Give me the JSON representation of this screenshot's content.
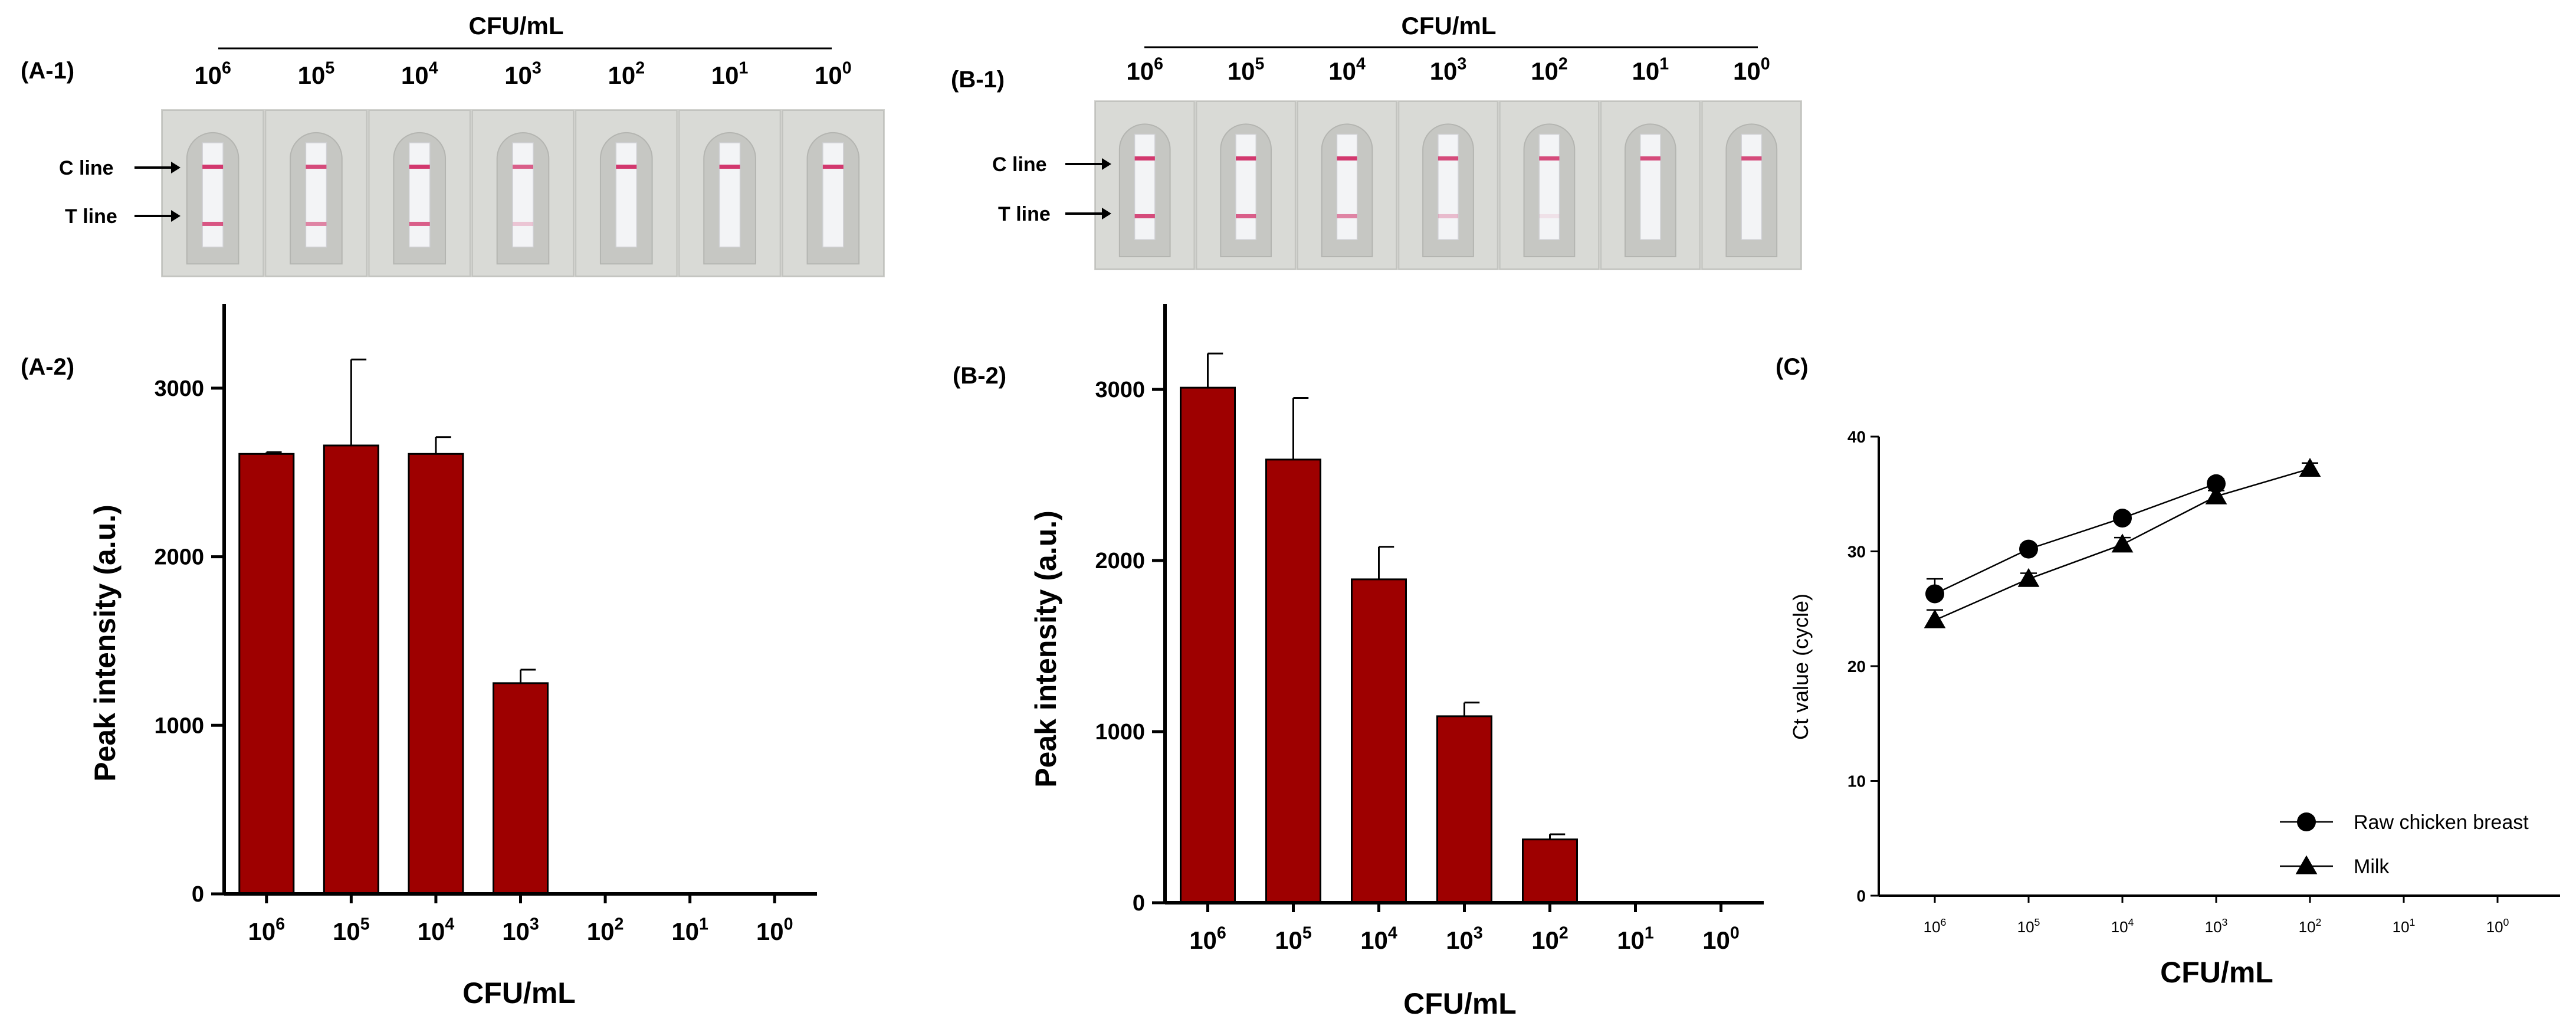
{
  "colors": {
    "bar": "#9e0000",
    "axis": "#000000",
    "strip_bg": "#d2d3cf",
    "band": "#d2386e"
  },
  "unit_label": "CFU/mL",
  "conc": {
    "base": "10",
    "exps": [
      "6",
      "5",
      "4",
      "3",
      "2",
      "1",
      "0"
    ]
  },
  "panels": {
    "a1": {
      "label": "(A-1)",
      "header": "CFU/mL",
      "c_line": "C line",
      "t_line": "T line"
    },
    "b1": {
      "label": "(B-1)",
      "header": "CFU/mL",
      "c_line": "C line",
      "t_line": "T line"
    },
    "a2": {
      "label": "(A-2)"
    },
    "b2": {
      "label": "(B-2)"
    },
    "c": {
      "label": "(C)"
    }
  },
  "strips": {
    "a1": [
      {
        "c_band": 1.0,
        "t_band": 0.85
      },
      {
        "c_band": 0.9,
        "t_band": 0.6
      },
      {
        "c_band": 1.0,
        "t_band": 0.8
      },
      {
        "c_band": 0.8,
        "t_band": 0.25
      },
      {
        "c_band": 1.0,
        "t_band": 0.0
      },
      {
        "c_band": 1.0,
        "t_band": 0.0
      },
      {
        "c_band": 1.0,
        "t_band": 0.0
      }
    ],
    "b1": [
      {
        "c_band": 1.0,
        "t_band": 0.9
      },
      {
        "c_band": 1.0,
        "t_band": 0.8
      },
      {
        "c_band": 1.0,
        "t_band": 0.6
      },
      {
        "c_band": 0.9,
        "t_band": 0.3
      },
      {
        "c_band": 0.9,
        "t_band": 0.1
      },
      {
        "c_band": 0.9,
        "t_band": 0.0
      },
      {
        "c_band": 0.9,
        "t_band": 0.0
      }
    ]
  },
  "chart_data": [
    {
      "id": "A-2",
      "type": "bar",
      "categories": [
        "10^6",
        "10^5",
        "10^4",
        "10^3",
        "10^2",
        "10^1",
        "10^0"
      ],
      "values": [
        2610,
        2660,
        2610,
        1250,
        0,
        0,
        0
      ],
      "errors": [
        10,
        510,
        100,
        80,
        0,
        0,
        0
      ],
      "title": "",
      "xlabel": "CFU/mL",
      "ylabel": "Peak intensity  (a.u.)",
      "ylim": [
        0,
        3500
      ],
      "yticks": [
        0,
        1000,
        2000,
        3000
      ],
      "ytick_labels": [
        "0",
        "1000",
        "2000",
        "3000"
      ]
    },
    {
      "id": "B-2",
      "type": "bar",
      "categories": [
        "10^6",
        "10^5",
        "10^4",
        "10^3",
        "10^2",
        "10^1",
        "10^0"
      ],
      "values": [
        3010,
        2590,
        1890,
        1090,
        370,
        0,
        0
      ],
      "errors": [
        200,
        360,
        190,
        80,
        30,
        0,
        0
      ],
      "title": "",
      "xlabel": "CFU/mL",
      "ylabel": "Peak intensity (a.u.)",
      "ylim": [
        0,
        3500
      ],
      "yticks": [
        0,
        1000,
        2000,
        3000
      ],
      "ytick_labels": [
        "0",
        "1000",
        "2000",
        "3000"
      ]
    },
    {
      "id": "C",
      "type": "line",
      "categories": [
        "10^6",
        "10^5",
        "10^4",
        "10^3",
        "10^2",
        "10^1",
        "10^0"
      ],
      "series": [
        {
          "name": "Raw chicken breast",
          "marker": "circle",
          "values": [
            26.3,
            30.2,
            32.9,
            35.9,
            null,
            null,
            null
          ],
          "errors": [
            1.3,
            0.4,
            0.4,
            0.4,
            0,
            0,
            0
          ]
        },
        {
          "name": "Milk",
          "marker": "triangle",
          "values": [
            24.0,
            27.6,
            30.6,
            34.8,
            37.2,
            null,
            null
          ],
          "errors": [
            0.9,
            0.5,
            0.6,
            0.5,
            0.5,
            0,
            0
          ]
        }
      ],
      "title": "",
      "xlabel": "CFU/mL",
      "ylabel": "Ct value (cycle)",
      "ylim": [
        0,
        40
      ],
      "yticks": [
        0,
        10,
        20,
        30,
        40
      ],
      "ytick_labels": [
        "0",
        "10",
        "20",
        "30",
        "40"
      ],
      "legend_position": "bottom-right"
    }
  ]
}
